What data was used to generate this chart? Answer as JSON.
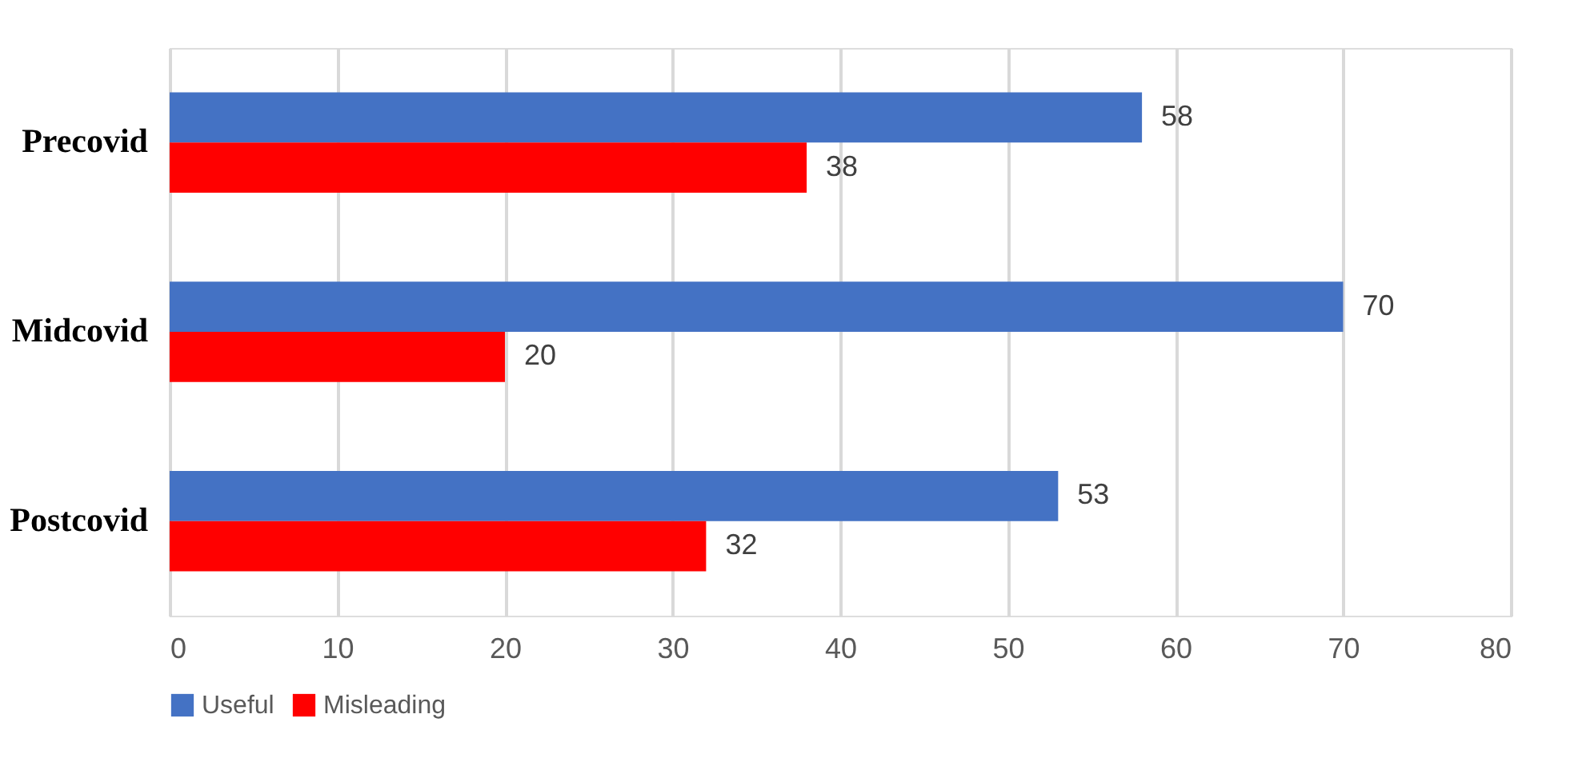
{
  "chart_data": {
    "type": "bar",
    "orientation": "horizontal",
    "categories": [
      "Precovid",
      "Midcovid",
      "Postcovid"
    ],
    "series": [
      {
        "name": "Useful",
        "color": "#4472c4",
        "values": [
          58,
          70,
          53
        ]
      },
      {
        "name": "Misleading",
        "color": "#ff0000",
        "values": [
          38,
          20,
          32
        ]
      }
    ],
    "xlim": [
      0,
      80
    ],
    "xticks": [
      0,
      10,
      20,
      30,
      40,
      50,
      60,
      70,
      80
    ],
    "grid": "x",
    "legend": "bottom",
    "data_labels": true
  }
}
